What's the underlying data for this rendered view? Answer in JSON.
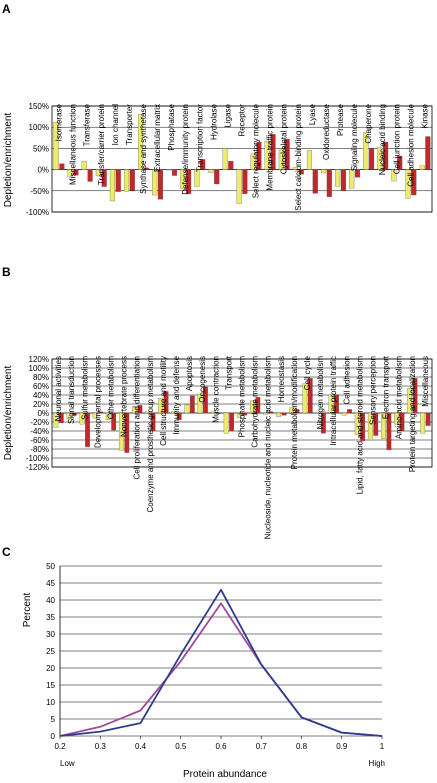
{
  "panels": {
    "a": {
      "letter": "A"
    },
    "b": {
      "letter": "B"
    },
    "c": {
      "letter": "C"
    }
  },
  "colors": {
    "yellow": "#ecec6a",
    "red": "#c0282a",
    "purple": "#a04a9a",
    "blue": "#2e3c8c",
    "frame": "#000000",
    "grid": "#000000"
  },
  "chart_data": [
    {
      "type": "bar",
      "panel": "A",
      "ylabel": "Depletion/enrichment",
      "ylim": [
        -100,
        150
      ],
      "yticks": [
        150,
        100,
        50,
        0,
        -50,
        -100
      ],
      "ytick_labels": [
        "150%",
        "100%",
        "50%",
        "0%",
        "-50%",
        "-100%"
      ],
      "categories": [
        "Isomerase",
        "Miscellaneous function",
        "Transferase",
        "Transfer/carrier protein",
        "Ion channel",
        "Transporter",
        "Synthase and synthetase",
        "Extracellular matrix",
        "Phosphatase",
        "Defense/immunity protein",
        "Transcription factor",
        "Hydrolase",
        "Ligase",
        "Receptor",
        "Select regulatory molecule",
        "Membrane traffic protein",
        "Cytoskeletal protein",
        "Select calcium-binding protein",
        "Lyase",
        "Oxidoreductase",
        "Protease",
        "Signaling molecule",
        "Chaperone",
        "Nucleic acid binding",
        "Cell junction protein",
        "Cell adhesion molecule",
        "Kinase"
      ],
      "series": [
        {
          "color": "yellow",
          "values": [
            112,
            -16,
            20,
            -15,
            -74,
            -51,
            130,
            -60,
            -1,
            -45,
            -40,
            -7,
            50,
            -80,
            37,
            67,
            47,
            5,
            45,
            -8,
            -39,
            -44,
            88,
            52,
            -27,
            -68,
            9
          ]
        },
        {
          "color": "red",
          "values": [
            14,
            -13,
            -28,
            -40,
            -52,
            -49,
            4,
            -70,
            -14,
            -57,
            24,
            -34,
            20,
            -57,
            65,
            83,
            72,
            -11,
            -56,
            -64,
            -50,
            -18,
            50,
            65,
            32,
            -60,
            78
          ]
        }
      ]
    },
    {
      "type": "bar",
      "panel": "B",
      "ylabel": "Depletion/enrichment",
      "ylim": [
        -120,
        120
      ],
      "yticks": [
        120,
        100,
        80,
        60,
        40,
        20,
        0,
        -20,
        -40,
        -60,
        -80,
        -100,
        -120
      ],
      "ytick_labels": [
        "120%",
        "100%",
        "80%",
        "60%",
        "40%",
        "20%",
        "0%",
        "-20%",
        "-40%",
        "-60%",
        "-80%",
        "-100%",
        "-120%"
      ],
      "categories": [
        "Neuronal activities",
        "Signal transduction",
        "Sulfur metabolism",
        "Developmental processes",
        "Other metabolism",
        "Nonvertebrate process",
        "Cell proliferation and differentiation",
        "Coenzyme and prosthetic group metabolism",
        "Cell structure and motility",
        "Immunity and defense",
        "Apoptosis",
        "Oncogenesis",
        "Muscle contraction",
        "Transport",
        "Phosphate metabolism",
        "Carbohydrate metabolism",
        "Nucleoside, nucleotide and nucleic acid metabolism",
        "Homeostasis",
        "Protein metabolism/modification",
        "Cell cycle",
        "Nitrogen metabolism",
        "Intracellular protein traffic",
        "Cell adhesion",
        "Lipid, fatty acid and steroid metabolism",
        "Sensory perception",
        "Electron transport",
        "Amino-acid metabolism",
        "Protein targeting and localization",
        "Miscellaneous"
      ],
      "series": [
        {
          "color": "yellow",
          "values": [
            -32,
            -12,
            -25,
            -12,
            -15,
            -83,
            14,
            3,
            33,
            3,
            18,
            42,
            3,
            -45,
            -10,
            27,
            -3,
            -8,
            12,
            65,
            0,
            40,
            -5,
            -48,
            -60,
            -57,
            -25,
            55,
            -45
          ]
        },
        {
          "color": "red",
          "values": [
            -22,
            -5,
            -75,
            3,
            -38,
            -88,
            17,
            -40,
            48,
            -15,
            38,
            58,
            -2,
            -40,
            -5,
            35,
            3,
            -5,
            8,
            77,
            -45,
            41,
            8,
            -62,
            -50,
            -82,
            -40,
            77,
            -28
          ]
        }
      ]
    },
    {
      "type": "line",
      "panel": "C",
      "xlabel": "Protein abundance",
      "ylabel": "Percent",
      "x": [
        0.2,
        0.3,
        0.4,
        0.5,
        0.6,
        0.7,
        0.8,
        0.9,
        1
      ],
      "xtick_labels": [
        "0.2",
        "0.3",
        "0.4",
        "0.5",
        "0.6",
        "0.7",
        "0.8",
        "0.9",
        "1"
      ],
      "xlim": [
        0.2,
        1
      ],
      "ylim": [
        0,
        50
      ],
      "yticks": [
        0,
        5,
        10,
        15,
        20,
        25,
        30,
        35,
        40,
        45,
        50
      ],
      "ytick_labels": [
        "0",
        "5",
        "10",
        "15",
        "20",
        "25",
        "30",
        "35",
        "40",
        "45",
        "50"
      ],
      "grid": true,
      "end_labels": {
        "low": "Low",
        "high": "High"
      },
      "series": [
        {
          "color": "purple",
          "values": [
            0,
            2.7,
            7.5,
            22,
            39,
            21,
            5.5,
            1,
            0
          ]
        },
        {
          "color": "blue",
          "values": [
            0,
            1.3,
            3.8,
            24,
            43,
            21,
            5.5,
            1,
            0
          ]
        }
      ]
    }
  ]
}
